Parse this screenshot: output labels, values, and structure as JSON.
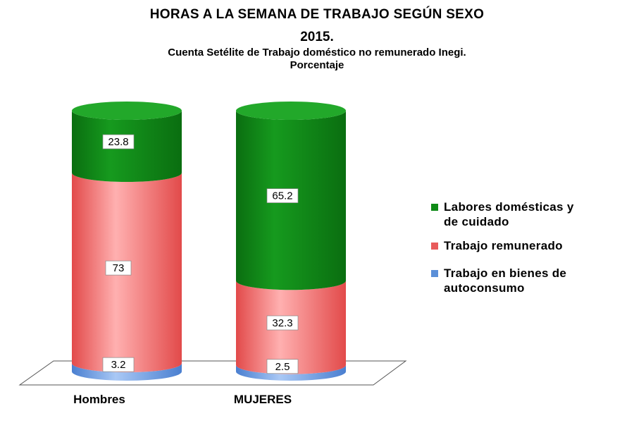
{
  "title": {
    "line1": "HORAS A LA SEMANA DE TRABAJO SEGÚN SEXO",
    "line2": "2015.",
    "line3": "Cuenta Setélite de Trabajo doméstico no remunerado Inegi.",
    "line4": "Porcentaje"
  },
  "chart_data": {
    "type": "bar",
    "stacked": true,
    "categories": [
      "Hombres",
      "MUJERES"
    ],
    "series": [
      {
        "name": "Trabajo en bienes de autoconsumo",
        "values": [
          3.2,
          2.5
        ],
        "color": "#5b8fd8"
      },
      {
        "name": "Trabajo remunerado",
        "values": [
          73,
          32.3
        ],
        "color": "#e85a5a"
      },
      {
        "name": "Labores domésticas y de cuidado",
        "values": [
          23.8,
          65.2
        ],
        "color": "#0e8a16"
      }
    ],
    "labels": {
      "hombres": [
        "3.2",
        "73",
        "23.8"
      ],
      "mujeres": [
        "2.5",
        "32.3",
        "65.2"
      ]
    },
    "ylim": [
      0,
      100
    ],
    "legend_position": "right",
    "grid": false
  },
  "legend": [
    {
      "line1": "Labores domésticas y",
      "line2": "de cuidado",
      "color": "#0e8a16"
    },
    {
      "line1": "Trabajo remunerado",
      "line2": "",
      "color": "#e85a5a"
    },
    {
      "line1": "Trabajo en bienes de",
      "line2": "autoconsumo",
      "color": "#5b8fd8"
    }
  ]
}
